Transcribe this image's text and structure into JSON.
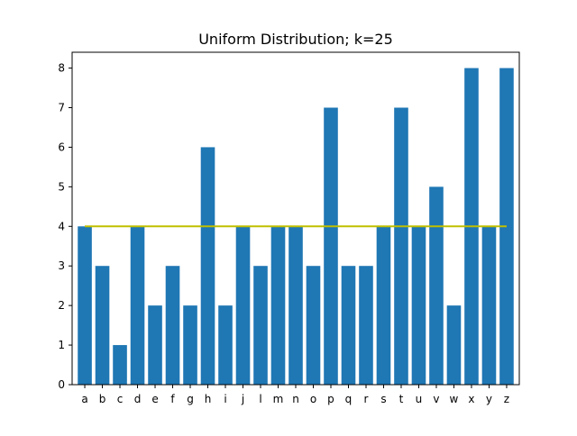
{
  "chart_data": {
    "type": "bar",
    "title": "Uniform Distribution; k=25",
    "xlabel": "",
    "ylabel": "",
    "categories": [
      "a",
      "b",
      "c",
      "d",
      "e",
      "f",
      "g",
      "h",
      "i",
      "j",
      "l",
      "m",
      "n",
      "o",
      "p",
      "q",
      "r",
      "s",
      "t",
      "u",
      "v",
      "w",
      "x",
      "y",
      "z"
    ],
    "values": [
      4,
      3,
      1,
      4,
      2,
      3,
      2,
      6,
      2,
      4,
      3,
      4,
      4,
      3,
      7,
      3,
      3,
      4,
      7,
      4,
      5,
      2,
      8,
      4,
      8
    ],
    "reference_line": {
      "y": 4,
      "color": "#bfbf00"
    },
    "ylim": [
      0,
      8.4
    ],
    "yticks": [
      0,
      1,
      2,
      3,
      4,
      5,
      6,
      7,
      8
    ],
    "bar_color": "#1f77b4",
    "grid": false,
    "legend": "none"
  }
}
